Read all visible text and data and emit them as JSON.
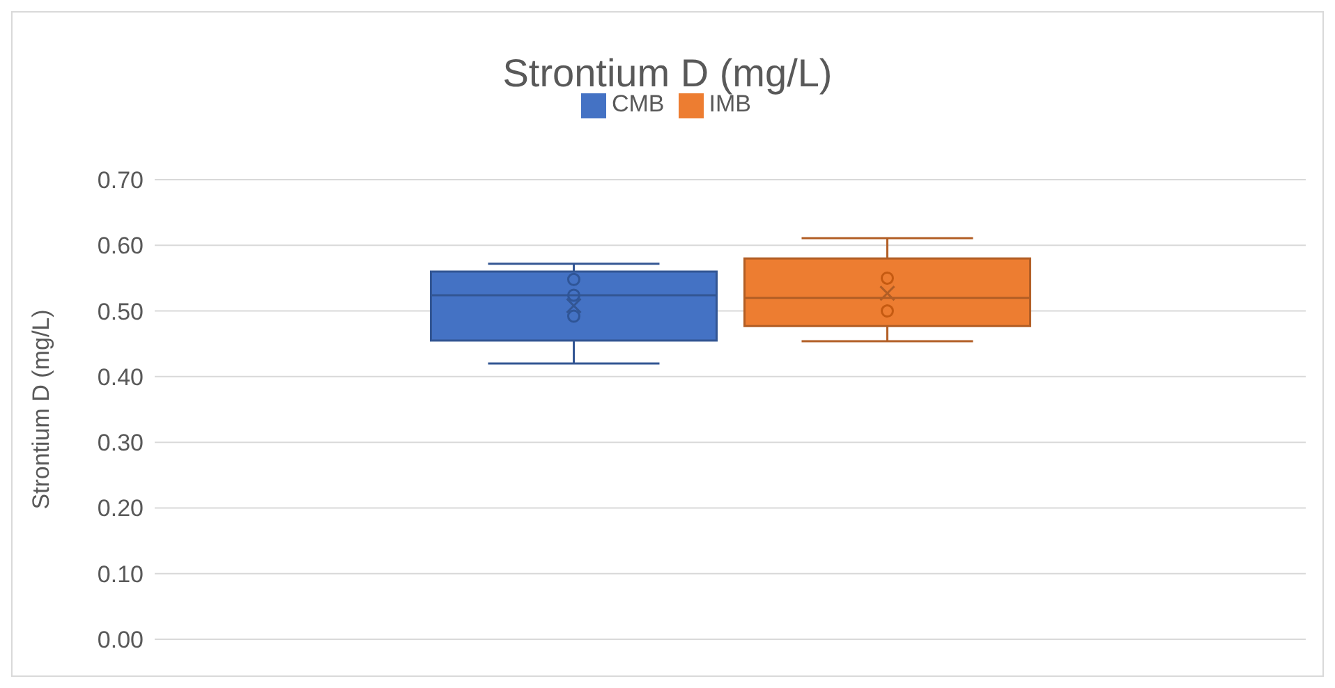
{
  "chart_data": {
    "type": "box",
    "title": "Strontium D (mg/L)",
    "ylabel": "Strontium D (mg/L)",
    "categories": [
      null
    ],
    "series": [
      {
        "name": "CMB",
        "color": "#4472c4",
        "boxes": [
          {
            "low": 0.42,
            "q1": 0.455,
            "median": 0.524,
            "q3": 0.56,
            "high": 0.572,
            "mean": 0.508
          }
        ]
      },
      {
        "name": "IMB",
        "color": "#ed7d31",
        "boxes": [
          {
            "low": 0.454,
            "q1": 0.477,
            "median": 0.52,
            "q3": 0.58,
            "high": 0.611,
            "mean": 0.527
          }
        ]
      },
      {
        "type": "scatter",
        "color": "#2f5597",
        "x": [
          null,
          null,
          null
        ],
        "values": [
          0.548,
          0.524,
          0.492
        ]
      },
      {
        "type": "scatter",
        "color": "#c55a11",
        "x": [
          null,
          null
        ],
        "values": [
          0.55,
          0.5
        ]
      }
    ],
    "ylim": [
      0,
      0.7
    ],
    "yticks": [
      {
        "value": 0,
        "label": "0.00"
      },
      {
        "value": 0.1,
        "label": "0.10"
      },
      {
        "value": 0.2,
        "label": "0.20"
      },
      {
        "value": 0.3,
        "label": "0.30"
      },
      {
        "value": 0.4,
        "label": "0.40"
      },
      {
        "value": 0.5,
        "label": "0.50"
      },
      {
        "value": 0.6,
        "label": "0.60"
      },
      {
        "value": 0.7,
        "label": "0.70"
      }
    ],
    "grid": "y",
    "legend": "top",
    "marker": "circle"
  }
}
